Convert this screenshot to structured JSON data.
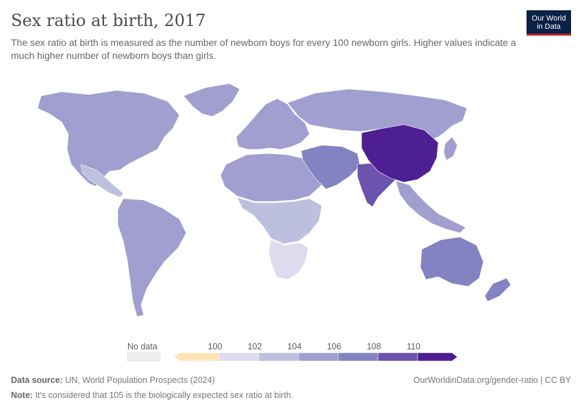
{
  "header": {
    "title": "Sex ratio at birth, 2017",
    "subtitle": "The sex ratio at birth is measured as the number of newborn boys for every 100 newborn girls. Higher values indicate a much higher number of newborn boys than girls.",
    "logo_line1": "Our World",
    "logo_line2": "in Data"
  },
  "legend": {
    "no_data_label": "No data",
    "ticks": [
      "100",
      "102",
      "104",
      "106",
      "108",
      "110"
    ],
    "bins": [
      "#fde3b6",
      "#dcdcee",
      "#bdbfdf",
      "#a19fcf",
      "#8483c2",
      "#6c53ad",
      "#4e1f92"
    ],
    "no_data_color": "#eeeeee"
  },
  "colors": {
    "russia": "#a19fcf",
    "north_america": "#a19fcf",
    "europe": "#a19fcf",
    "south_america": "#a19fcf",
    "africa_north": "#a19fcf",
    "africa_central": "#bdbfdf",
    "africa_south": "#dcdcee",
    "china": "#4e1f92",
    "india": "#6c53ad",
    "middle_east": "#8483c2",
    "australia": "#8483c2",
    "greenland": "#a19fcf"
  },
  "footer": {
    "source_label": "Data source:",
    "source_text": "UN, World Population Prospects (2024)",
    "url": "OurWorldinData.org/gender-ratio | CC BY",
    "note_label": "Note:",
    "note_text": "It's considered that 105 is the biologically expected sex ratio at birth."
  }
}
